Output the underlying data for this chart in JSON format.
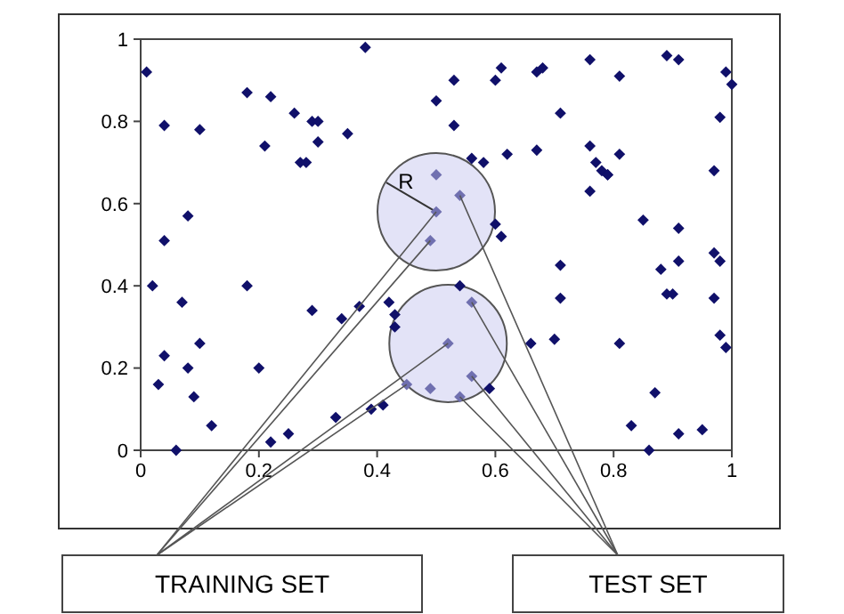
{
  "chart_data": {
    "type": "scatter",
    "xlim": [
      0,
      1
    ],
    "ylim": [
      0,
      1
    ],
    "xticks": [
      0,
      0.2,
      0.4,
      0.6,
      0.8,
      1
    ],
    "yticks": [
      0,
      0.2,
      0.4,
      0.6,
      0.8,
      1
    ],
    "marker": "diamond",
    "grid": false,
    "annotations": [
      "R",
      {
        "text": "TRAINING SET",
        "x": 0.5,
        "y": 0.58
      },
      {
        "text": "TEST SET",
        "x": 0.54,
        "y": 0.62
      }
    ],
    "series": [
      {
        "color": "#10106a",
        "x": [
          0.01,
          0.04,
          0.1,
          0.08,
          0.04,
          0.18,
          0.22,
          0.21,
          0.26,
          0.29,
          0.3,
          0.3,
          0.27,
          0.28,
          0.35,
          0.38,
          0.53,
          0.5,
          0.53,
          0.61,
          0.6,
          0.67,
          0.68,
          0.76,
          0.81,
          0.89,
          0.91,
          0.99,
          1,
          0.71,
          0.98,
          0.56,
          0.58,
          0.62,
          0.67,
          0.76,
          0.77,
          0.78,
          0.79,
          0.79,
          0.81,
          0.76,
          0.97,
          0.85,
          0.91,
          0.6,
          0.61,
          0.02,
          0.07,
          0.18,
          0.04,
          0.1,
          0.03,
          0.08,
          0.09,
          0.12,
          0.06,
          0.2,
          0.22,
          0.25,
          0.29,
          0.34,
          0.37,
          0.42,
          0.43,
          0.43,
          0.33,
          0.39,
          0.41,
          0.71,
          0.71,
          0.66,
          0.7,
          0.81,
          0.88,
          0.91,
          0.97,
          0.98,
          0.89,
          0.9,
          0.97,
          0.98,
          0.99,
          0.87,
          0.83,
          0.91,
          0.95,
          0.86,
          0.59,
          0.54
        ],
        "values": [
          0.92,
          0.79,
          0.78,
          0.57,
          0.51,
          0.87,
          0.86,
          0.74,
          0.82,
          0.8,
          0.8,
          0.75,
          0.7,
          0.7,
          0.77,
          0.98,
          0.9,
          0.85,
          0.79,
          0.93,
          0.9,
          0.92,
          0.93,
          0.95,
          0.91,
          0.96,
          0.95,
          0.92,
          0.89,
          0.82,
          0.81,
          0.71,
          0.7,
          0.72,
          0.73,
          0.74,
          0.7,
          0.68,
          0.67,
          0.67,
          0.72,
          0.63,
          0.68,
          0.56,
          0.54,
          0.55,
          0.52,
          0.4,
          0.36,
          0.4,
          0.23,
          0.26,
          0.16,
          0.2,
          0.13,
          0.06,
          0,
          0.2,
          0.02,
          0.04,
          0.34,
          0.32,
          0.35,
          0.36,
          0.33,
          0.3,
          0.08,
          0.1,
          0.11,
          0.45,
          0.37,
          0.26,
          0.27,
          0.26,
          0.44,
          0.46,
          0.48,
          0.46,
          0.38,
          0.38,
          0.37,
          0.28,
          0.25,
          0.14,
          0.06,
          0.04,
          0.05,
          0,
          0.15,
          0.4
        ]
      },
      {
        "color": "#7070b0",
        "x": [
          0.5,
          0.54,
          0.5,
          0.49,
          0.56,
          0.52,
          0.56,
          0.49,
          0.54,
          0.45
        ],
        "values": [
          0.67,
          0.62,
          0.58,
          0.51,
          0.36,
          0.26,
          0.18,
          0.15,
          0.13,
          0.16
        ]
      }
    ]
  }
}
